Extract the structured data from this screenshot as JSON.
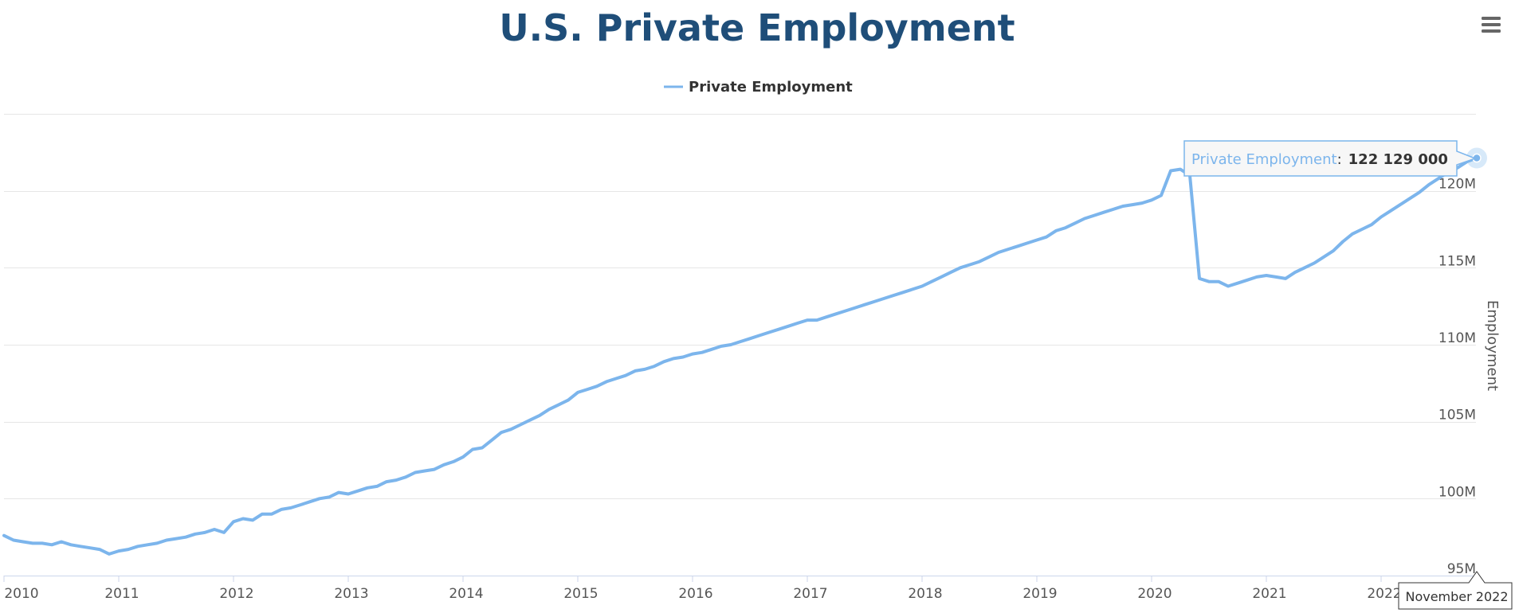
{
  "title": "U.S. Private Employment",
  "menu_icon": "hamburger-menu-icon",
  "legend": {
    "label": "Private Employment",
    "color": "#7cb5ec"
  },
  "tooltip": {
    "series_label": "Private Employment",
    "separator": ":",
    "value_text": "122 129 000"
  },
  "crosshair_label": "November 2022",
  "chart_data": {
    "type": "line",
    "title": "U.S. Private Employment",
    "ylabel": "Employment",
    "xlabel": "",
    "ylim": [
      95000000,
      125000000
    ],
    "xlim": [
      "2010-01",
      "2022-11"
    ],
    "y_ticks": [
      95000000,
      100000000,
      105000000,
      110000000,
      115000000,
      120000000
    ],
    "y_tick_labels": [
      "95M",
      "100M",
      "105M",
      "110M",
      "115M",
      "120M"
    ],
    "x_ticks": [
      "2010-01",
      "2011-01",
      "2012-01",
      "2013-01",
      "2014-01",
      "2015-01",
      "2016-01",
      "2017-01",
      "2018-01",
      "2019-01",
      "2020-01",
      "2021-01",
      "2022-01"
    ],
    "x_tick_labels": [
      "2010",
      "2011",
      "2012",
      "2013",
      "2014",
      "2015",
      "2016",
      "2017",
      "2018",
      "2019",
      "2020",
      "2021",
      "2022"
    ],
    "grid": true,
    "legend_position": "top-center",
    "series": [
      {
        "name": "Private Employment",
        "color": "#7cb5ec",
        "points": [
          [
            "2010-01",
            97600000
          ],
          [
            "2010-02",
            97300000
          ],
          [
            "2010-03",
            97200000
          ],
          [
            "2010-04",
            97100000
          ],
          [
            "2010-05",
            97100000
          ],
          [
            "2010-06",
            97000000
          ],
          [
            "2010-07",
            97200000
          ],
          [
            "2010-08",
            97000000
          ],
          [
            "2010-09",
            96900000
          ],
          [
            "2010-10",
            96800000
          ],
          [
            "2010-11",
            96700000
          ],
          [
            "2010-12",
            96400000
          ],
          [
            "2011-01",
            96600000
          ],
          [
            "2011-02",
            96700000
          ],
          [
            "2011-03",
            96900000
          ],
          [
            "2011-04",
            97000000
          ],
          [
            "2011-05",
            97100000
          ],
          [
            "2011-06",
            97300000
          ],
          [
            "2011-07",
            97400000
          ],
          [
            "2011-08",
            97500000
          ],
          [
            "2011-09",
            97700000
          ],
          [
            "2011-10",
            97800000
          ],
          [
            "2011-11",
            98000000
          ],
          [
            "2011-12",
            97800000
          ],
          [
            "2012-01",
            98500000
          ],
          [
            "2012-02",
            98700000
          ],
          [
            "2012-03",
            98600000
          ],
          [
            "2012-04",
            99000000
          ],
          [
            "2012-05",
            99000000
          ],
          [
            "2012-06",
            99300000
          ],
          [
            "2012-07",
            99400000
          ],
          [
            "2012-08",
            99600000
          ],
          [
            "2012-09",
            99800000
          ],
          [
            "2012-10",
            100000000
          ],
          [
            "2012-11",
            100100000
          ],
          [
            "2012-12",
            100400000
          ],
          [
            "2013-01",
            100300000
          ],
          [
            "2013-02",
            100500000
          ],
          [
            "2013-03",
            100700000
          ],
          [
            "2013-04",
            100800000
          ],
          [
            "2013-05",
            101100000
          ],
          [
            "2013-06",
            101200000
          ],
          [
            "2013-07",
            101400000
          ],
          [
            "2013-08",
            101700000
          ],
          [
            "2013-09",
            101800000
          ],
          [
            "2013-10",
            101900000
          ],
          [
            "2013-11",
            102200000
          ],
          [
            "2013-12",
            102400000
          ],
          [
            "2014-01",
            102700000
          ],
          [
            "2014-02",
            103200000
          ],
          [
            "2014-03",
            103300000
          ],
          [
            "2014-04",
            103800000
          ],
          [
            "2014-05",
            104300000
          ],
          [
            "2014-06",
            104500000
          ],
          [
            "2014-07",
            104800000
          ],
          [
            "2014-08",
            105100000
          ],
          [
            "2014-09",
            105400000
          ],
          [
            "2014-10",
            105800000
          ],
          [
            "2014-11",
            106100000
          ],
          [
            "2014-12",
            106400000
          ],
          [
            "2015-01",
            106900000
          ],
          [
            "2015-02",
            107100000
          ],
          [
            "2015-03",
            107300000
          ],
          [
            "2015-04",
            107600000
          ],
          [
            "2015-05",
            107800000
          ],
          [
            "2015-06",
            108000000
          ],
          [
            "2015-07",
            108300000
          ],
          [
            "2015-08",
            108400000
          ],
          [
            "2015-09",
            108600000
          ],
          [
            "2015-10",
            108900000
          ],
          [
            "2015-11",
            109100000
          ],
          [
            "2015-12",
            109200000
          ],
          [
            "2016-01",
            109400000
          ],
          [
            "2016-02",
            109500000
          ],
          [
            "2016-03",
            109700000
          ],
          [
            "2016-04",
            109900000
          ],
          [
            "2016-05",
            110000000
          ],
          [
            "2016-06",
            110200000
          ],
          [
            "2016-07",
            110400000
          ],
          [
            "2016-08",
            110600000
          ],
          [
            "2016-09",
            110800000
          ],
          [
            "2016-10",
            111000000
          ],
          [
            "2016-11",
            111200000
          ],
          [
            "2016-12",
            111400000
          ],
          [
            "2017-01",
            111600000
          ],
          [
            "2017-02",
            111600000
          ],
          [
            "2017-03",
            111800000
          ],
          [
            "2017-04",
            112000000
          ],
          [
            "2017-05",
            112200000
          ],
          [
            "2017-06",
            112400000
          ],
          [
            "2017-07",
            112600000
          ],
          [
            "2017-08",
            112800000
          ],
          [
            "2017-09",
            113000000
          ],
          [
            "2017-10",
            113200000
          ],
          [
            "2017-11",
            113400000
          ],
          [
            "2017-12",
            113600000
          ],
          [
            "2018-01",
            113800000
          ],
          [
            "2018-02",
            114100000
          ],
          [
            "2018-03",
            114400000
          ],
          [
            "2018-04",
            114700000
          ],
          [
            "2018-05",
            115000000
          ],
          [
            "2018-06",
            115200000
          ],
          [
            "2018-07",
            115400000
          ],
          [
            "2018-08",
            115700000
          ],
          [
            "2018-09",
            116000000
          ],
          [
            "2018-10",
            116200000
          ],
          [
            "2018-11",
            116400000
          ],
          [
            "2018-12",
            116600000
          ],
          [
            "2019-01",
            116800000
          ],
          [
            "2019-02",
            117000000
          ],
          [
            "2019-03",
            117400000
          ],
          [
            "2019-04",
            117600000
          ],
          [
            "2019-05",
            117900000
          ],
          [
            "2019-06",
            118200000
          ],
          [
            "2019-07",
            118400000
          ],
          [
            "2019-08",
            118600000
          ],
          [
            "2019-09",
            118800000
          ],
          [
            "2019-10",
            119000000
          ],
          [
            "2019-11",
            119100000
          ],
          [
            "2019-12",
            119200000
          ],
          [
            "2020-01",
            119400000
          ],
          [
            "2020-02",
            119700000
          ],
          [
            "2020-03",
            121300000
          ],
          [
            "2020-04",
            121400000
          ],
          [
            "2020-05",
            121000000
          ],
          [
            "2020-06",
            114300000
          ],
          [
            "2020-07",
            114100000
          ],
          [
            "2020-08",
            114100000
          ],
          [
            "2020-09",
            113800000
          ],
          [
            "2020-10",
            114000000
          ],
          [
            "2020-11",
            114200000
          ],
          [
            "2020-12",
            114400000
          ],
          [
            "2021-01",
            114500000
          ],
          [
            "2021-02",
            114400000
          ],
          [
            "2021-03",
            114300000
          ],
          [
            "2021-04",
            114700000
          ],
          [
            "2021-05",
            115000000
          ],
          [
            "2021-06",
            115300000
          ],
          [
            "2021-07",
            115700000
          ],
          [
            "2021-08",
            116100000
          ],
          [
            "2021-09",
            116700000
          ],
          [
            "2021-10",
            117200000
          ],
          [
            "2021-11",
            117500000
          ],
          [
            "2021-12",
            117800000
          ],
          [
            "2022-01",
            118300000
          ],
          [
            "2022-02",
            118700000
          ],
          [
            "2022-03",
            119100000
          ],
          [
            "2022-04",
            119500000
          ],
          [
            "2022-05",
            119900000
          ],
          [
            "2022-06",
            120400000
          ],
          [
            "2022-07",
            120800000
          ],
          [
            "2022-08",
            121200000
          ],
          [
            "2022-09",
            121500000
          ],
          [
            "2022-10",
            121900000
          ],
          [
            "2022-11",
            122129000
          ]
        ]
      }
    ],
    "highlight": {
      "x": "2022-11",
      "y": 122129000
    }
  }
}
